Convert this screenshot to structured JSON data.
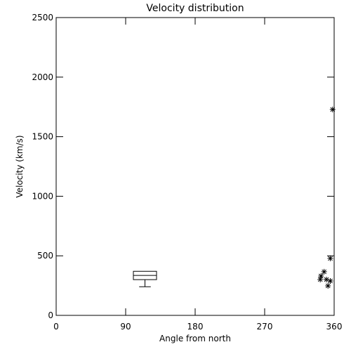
{
  "chart_data": {
    "type": "box",
    "title": "Velocity distribution",
    "x_label": "Angle from north",
    "y_label": "Velocity (km/s)",
    "xlim": [
      0,
      360
    ],
    "xticks": [
      0,
      90,
      180,
      270,
      360
    ],
    "ylim": [
      0,
      2500
    ],
    "yticks": [
      0,
      500,
      1000,
      1500,
      2000,
      2500
    ],
    "color": "#000000",
    "box": {
      "x": 115,
      "width": 30,
      "whisker_low": 240,
      "q1": 300,
      "median": 335,
      "q3": 370
    },
    "points": {
      "x": [
        358,
        355,
        347,
        343,
        342,
        350,
        352,
        355
      ],
      "y": [
        1728,
        478,
        366,
        330,
        301,
        301,
        248,
        289
      ]
    }
  }
}
